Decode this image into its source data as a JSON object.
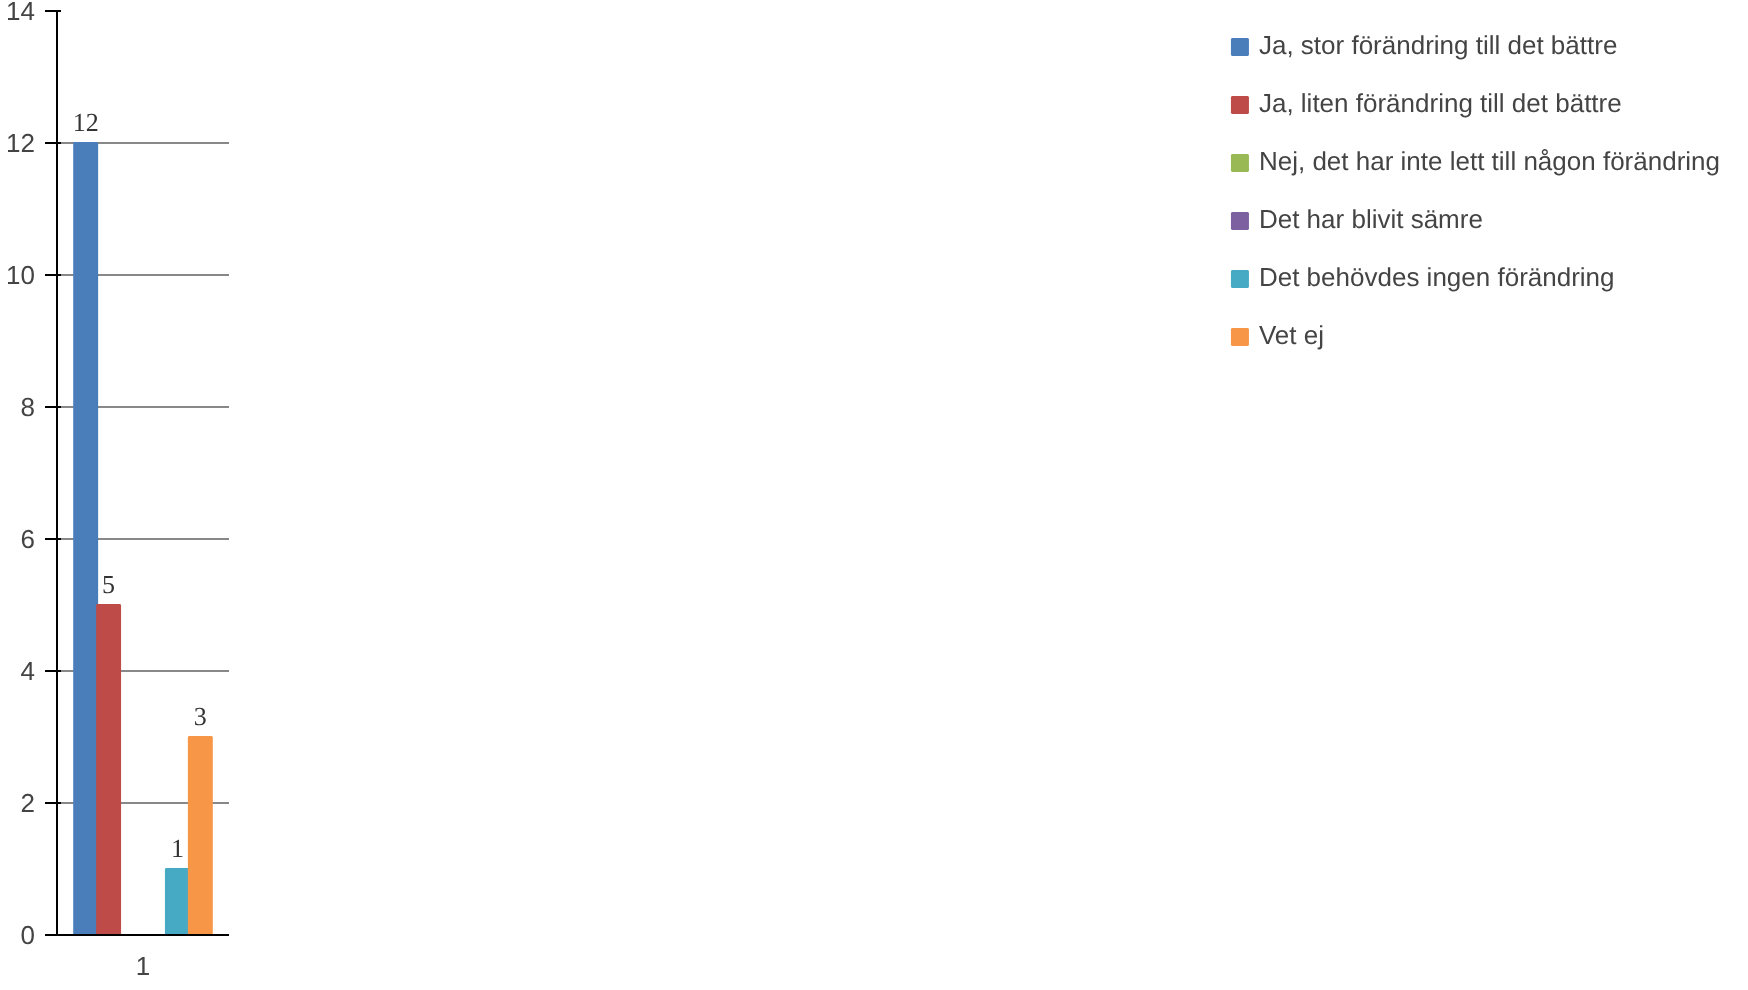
{
  "chart_data": {
    "type": "bar",
    "categories": [
      "1"
    ],
    "series": [
      {
        "name": "Ja, stor förändring till det bättre",
        "color": "#4a7ebb",
        "values": [
          12
        ]
      },
      {
        "name": "Ja, liten förändring till det bättre",
        "color": "#be4b48",
        "values": [
          5
        ]
      },
      {
        "name": "Nej, det har inte lett till någon förändring",
        "color": "#98b954",
        "values": [
          null
        ]
      },
      {
        "name": "Det har blivit sämre",
        "color": "#7d60a0",
        "values": [
          null
        ]
      },
      {
        "name": "Det behövdes ingen förändring",
        "color": "#46aac5",
        "values": [
          1
        ]
      },
      {
        "name": "Vet ej",
        "color": "#f79646",
        "values": [
          3
        ]
      }
    ],
    "ylim": [
      0,
      14
    ],
    "yticks": [
      0,
      2,
      4,
      6,
      8,
      10,
      12,
      14
    ],
    "grid": "y",
    "legend": "right",
    "data_labels": true
  }
}
